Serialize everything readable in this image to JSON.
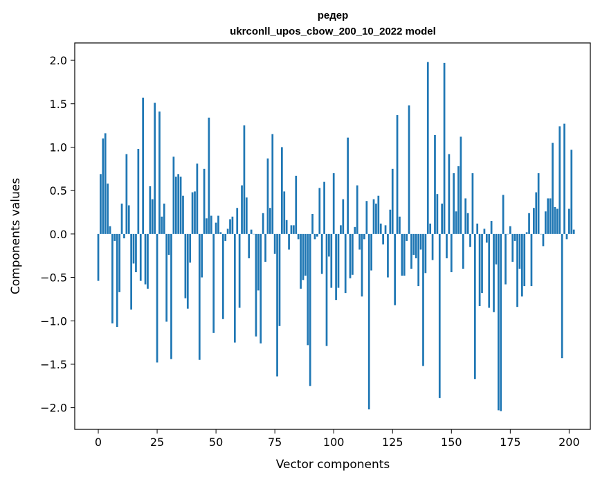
{
  "chart_data": {
    "type": "bar",
    "title": "редер",
    "subtitle": "ukrconll_upos_cbow_200_10_2022 model",
    "xlabel": "Vector components",
    "ylabel": "Components values",
    "xlim": [
      -10,
      209
    ],
    "ylim": [
      -2.25,
      2.2
    ],
    "xticks": [
      0,
      25,
      50,
      75,
      100,
      125,
      150,
      175,
      200
    ],
    "yticks": [
      -2.0,
      -1.5,
      -1.0,
      -0.5,
      0.0,
      0.5,
      1.0,
      1.5,
      2.0
    ],
    "ytick_labels": [
      "−2.0",
      "−1.5",
      "−1.0",
      "−0.5",
      "0.0",
      "0.5",
      "1.0",
      "1.5",
      "2.0"
    ],
    "grid": false,
    "bar_color": "#1f77b4",
    "values": [
      -0.54,
      0.69,
      1.1,
      1.16,
      0.58,
      0.09,
      -1.03,
      -0.08,
      -1.07,
      -0.67,
      0.35,
      -0.05,
      0.92,
      0.33,
      -0.87,
      -0.34,
      -0.44,
      0.98,
      -0.54,
      1.57,
      -0.58,
      -0.63,
      0.55,
      0.4,
      1.51,
      -1.48,
      1.41,
      0.2,
      0.35,
      -1.01,
      -0.24,
      -1.44,
      0.89,
      0.66,
      0.69,
      0.66,
      0.44,
      -0.74,
      -0.86,
      -0.33,
      0.48,
      0.49,
      0.81,
      -1.45,
      -0.5,
      0.75,
      0.18,
      1.34,
      0.21,
      -1.14,
      0.13,
      0.21,
      0.02,
      -0.98,
      -0.08,
      0.06,
      0.17,
      0.2,
      -1.25,
      0.3,
      -0.85,
      0.56,
      1.25,
      0.42,
      -0.28,
      0.05,
      0.0,
      -1.18,
      -0.65,
      -1.26,
      0.24,
      -0.32,
      0.87,
      0.3,
      1.15,
      -0.23,
      -1.64,
      -1.06,
      1.0,
      0.49,
      0.16,
      -0.18,
      0.1,
      0.1,
      0.67,
      -0.06,
      -0.63,
      -0.53,
      -0.48,
      -1.28,
      -1.75,
      0.23,
      -0.06,
      -0.03,
      0.53,
      -0.46,
      0.6,
      -1.29,
      -0.26,
      -0.62,
      0.7,
      -0.76,
      -0.62,
      0.1,
      0.4,
      -0.68,
      1.11,
      -0.51,
      -0.47,
      0.08,
      0.56,
      -0.18,
      -0.72,
      -0.06,
      0.38,
      -2.02,
      -0.42,
      0.4,
      0.35,
      0.44,
      0.12,
      -0.12,
      0.1,
      -0.5,
      0.28,
      0.75,
      -0.82,
      1.37,
      0.2,
      -0.48,
      -0.48,
      -0.08,
      1.48,
      -0.4,
      -0.24,
      -0.28,
      -0.6,
      -0.18,
      -1.52,
      -0.45,
      1.98,
      0.12,
      -0.3,
      1.14,
      0.46,
      -1.89,
      0.35,
      1.97,
      -0.28,
      0.92,
      -0.44,
      0.7,
      0.26,
      0.78,
      1.12,
      -0.4,
      0.41,
      0.24,
      -0.15,
      0.7,
      -1.67,
      0.12,
      -0.83,
      -0.68,
      0.06,
      -0.1,
      -0.85,
      0.15,
      -0.9,
      -0.35,
      -2.03,
      -2.04,
      0.45,
      -0.58,
      0.0,
      0.09,
      -0.32,
      -0.08,
      -0.84,
      -0.4,
      -0.72,
      -0.6,
      0.02,
      0.24,
      -0.6,
      0.3,
      0.48,
      0.7,
      0.0,
      -0.14,
      0.26,
      0.41,
      0.41,
      1.05,
      0.31,
      0.29,
      1.24,
      -1.43,
      1.27,
      -0.06,
      0.29,
      0.97,
      0.05
    ]
  }
}
